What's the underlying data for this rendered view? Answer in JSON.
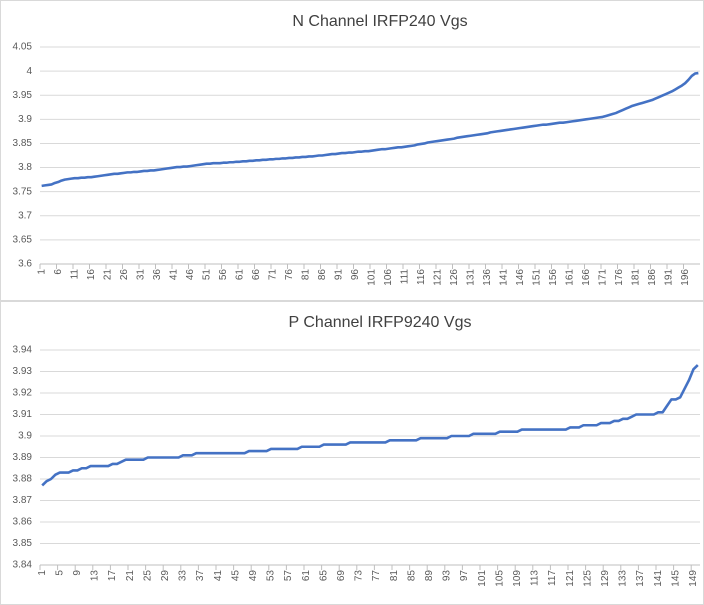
{
  "chart_data": [
    {
      "type": "line",
      "title": "N Channel IRFP240 Vgs",
      "color": "#4472c4",
      "grid": true,
      "ylim": [
        3.6,
        4.05
      ],
      "yticks": [
        3.6,
        3.65,
        3.7,
        3.75,
        3.8,
        3.85,
        3.9,
        3.95,
        4,
        4.05
      ],
      "categories": [
        1,
        null,
        null,
        null,
        null,
        6,
        null,
        null,
        null,
        null,
        11,
        null,
        null,
        null,
        null,
        16,
        null,
        null,
        null,
        null,
        21,
        null,
        null,
        null,
        null,
        26,
        null,
        null,
        null,
        null,
        31,
        null,
        null,
        null,
        null,
        36,
        null,
        null,
        null,
        null,
        41,
        null,
        null,
        null,
        null,
        46,
        null,
        null,
        null,
        null,
        51,
        null,
        null,
        null,
        null,
        56,
        null,
        null,
        null,
        null,
        61,
        null,
        null,
        null,
        null,
        66,
        null,
        null,
        null,
        null,
        71,
        null,
        null,
        null,
        null,
        76,
        null,
        null,
        null,
        null,
        81,
        null,
        null,
        null,
        null,
        86,
        null,
        null,
        null,
        null,
        91,
        null,
        null,
        null,
        null,
        96,
        null,
        null,
        null,
        null,
        101,
        null,
        null,
        null,
        null,
        106,
        null,
        null,
        null,
        null,
        111,
        null,
        null,
        null,
        null,
        116,
        null,
        null,
        null,
        null,
        121,
        null,
        null,
        null,
        null,
        126,
        null,
        null,
        null,
        null,
        131,
        null,
        null,
        null,
        null,
        136,
        null,
        null,
        null,
        null,
        141,
        null,
        null,
        null,
        null,
        146,
        null,
        null,
        null,
        null,
        151,
        null,
        null,
        null,
        null,
        156,
        null,
        null,
        null,
        null,
        161,
        null,
        null,
        null,
        null,
        166,
        null,
        null,
        null,
        null,
        171,
        null,
        null,
        null,
        null,
        176,
        null,
        null,
        null,
        null,
        181,
        null,
        null,
        null,
        null,
        186,
        null,
        null,
        null,
        null,
        191,
        null,
        null,
        null,
        null,
        196,
        null,
        null,
        null,
        null
      ],
      "values": [
        3.762,
        3.763,
        3.764,
        3.765,
        3.768,
        3.77,
        3.773,
        3.775,
        3.776,
        3.777,
        3.778,
        3.778,
        3.779,
        3.779,
        3.78,
        3.78,
        3.781,
        3.782,
        3.783,
        3.784,
        3.785,
        3.786,
        3.787,
        3.787,
        3.788,
        3.789,
        3.79,
        3.79,
        3.791,
        3.791,
        3.792,
        3.793,
        3.793,
        3.794,
        3.794,
        3.795,
        3.796,
        3.797,
        3.798,
        3.799,
        3.8,
        3.801,
        3.801,
        3.802,
        3.802,
        3.803,
        3.804,
        3.805,
        3.806,
        3.807,
        3.808,
        3.808,
        3.809,
        3.809,
        3.809,
        3.81,
        3.81,
        3.811,
        3.811,
        3.812,
        3.812,
        3.813,
        3.813,
        3.814,
        3.814,
        3.815,
        3.815,
        3.816,
        3.816,
        3.817,
        3.817,
        3.818,
        3.818,
        3.819,
        3.819,
        3.82,
        3.82,
        3.821,
        3.821,
        3.822,
        3.822,
        3.823,
        3.823,
        3.824,
        3.825,
        3.825,
        3.826,
        3.827,
        3.828,
        3.828,
        3.829,
        3.83,
        3.83,
        3.831,
        3.831,
        3.832,
        3.833,
        3.833,
        3.834,
        3.834,
        3.835,
        3.836,
        3.837,
        3.838,
        3.838,
        3.839,
        3.84,
        3.841,
        3.842,
        3.842,
        3.843,
        3.844,
        3.845,
        3.846,
        3.848,
        3.849,
        3.85,
        3.852,
        3.853,
        3.854,
        3.855,
        3.856,
        3.857,
        3.858,
        3.859,
        3.86,
        3.862,
        3.863,
        3.864,
        3.865,
        3.866,
        3.867,
        3.868,
        3.869,
        3.87,
        3.871,
        3.873,
        3.874,
        3.875,
        3.876,
        3.877,
        3.878,
        3.879,
        3.88,
        3.881,
        3.882,
        3.883,
        3.884,
        3.885,
        3.886,
        3.887,
        3.888,
        3.889,
        3.889,
        3.89,
        3.891,
        3.892,
        3.893,
        3.893,
        3.894,
        3.895,
        3.896,
        3.897,
        3.898,
        3.899,
        3.9,
        3.901,
        3.902,
        3.903,
        3.904,
        3.905,
        3.907,
        3.909,
        3.911,
        3.913,
        3.916,
        3.919,
        3.922,
        3.925,
        3.928,
        3.93,
        3.932,
        3.934,
        3.936,
        3.938,
        3.94,
        3.943,
        3.946,
        3.949,
        3.952,
        3.955,
        3.958,
        3.962,
        3.966,
        3.97,
        3.975,
        3.982,
        3.99,
        3.995,
        3.996
      ]
    },
    {
      "type": "line",
      "title": "P Channel IRFP9240 Vgs",
      "color": "#4472c4",
      "grid": true,
      "ylim": [
        3.84,
        3.94
      ],
      "yticks": [
        3.84,
        3.85,
        3.86,
        3.87,
        3.88,
        3.89,
        3.9,
        3.91,
        3.92,
        3.93,
        3.94
      ],
      "categories": [
        1,
        null,
        null,
        null,
        5,
        null,
        null,
        null,
        9,
        null,
        null,
        null,
        13,
        null,
        null,
        null,
        17,
        null,
        null,
        null,
        21,
        null,
        null,
        null,
        25,
        null,
        null,
        null,
        29,
        null,
        null,
        null,
        33,
        null,
        null,
        null,
        37,
        null,
        null,
        null,
        41,
        null,
        null,
        null,
        45,
        null,
        null,
        null,
        49,
        null,
        null,
        null,
        53,
        null,
        null,
        null,
        57,
        null,
        null,
        null,
        61,
        null,
        null,
        null,
        65,
        null,
        null,
        null,
        69,
        null,
        null,
        null,
        73,
        null,
        null,
        null,
        77,
        null,
        null,
        null,
        81,
        null,
        null,
        null,
        85,
        null,
        null,
        null,
        89,
        null,
        null,
        null,
        93,
        null,
        null,
        null,
        97,
        null,
        null,
        null,
        101,
        null,
        null,
        null,
        105,
        null,
        null,
        null,
        109,
        null,
        null,
        null,
        113,
        null,
        null,
        null,
        117,
        null,
        null,
        null,
        121,
        null,
        null,
        null,
        125,
        null,
        null,
        null,
        129,
        null,
        null,
        null,
        133,
        null,
        null,
        null,
        137,
        null,
        null,
        null,
        141,
        null,
        null,
        null,
        145,
        null,
        null,
        null,
        149,
        null
      ],
      "values": [
        3.877,
        3.879,
        3.88,
        3.882,
        3.883,
        3.883,
        3.883,
        3.884,
        3.884,
        3.885,
        3.885,
        3.886,
        3.886,
        3.886,
        3.886,
        3.886,
        3.887,
        3.887,
        3.888,
        3.889,
        3.889,
        3.889,
        3.889,
        3.889,
        3.89,
        3.89,
        3.89,
        3.89,
        3.89,
        3.89,
        3.89,
        3.89,
        3.891,
        3.891,
        3.891,
        3.892,
        3.892,
        3.892,
        3.892,
        3.892,
        3.892,
        3.892,
        3.892,
        3.892,
        3.892,
        3.892,
        3.892,
        3.893,
        3.893,
        3.893,
        3.893,
        3.893,
        3.894,
        3.894,
        3.894,
        3.894,
        3.894,
        3.894,
        3.894,
        3.895,
        3.895,
        3.895,
        3.895,
        3.895,
        3.896,
        3.896,
        3.896,
        3.896,
        3.896,
        3.896,
        3.897,
        3.897,
        3.897,
        3.897,
        3.897,
        3.897,
        3.897,
        3.897,
        3.897,
        3.898,
        3.898,
        3.898,
        3.898,
        3.898,
        3.898,
        3.898,
        3.899,
        3.899,
        3.899,
        3.899,
        3.899,
        3.899,
        3.899,
        3.9,
        3.9,
        3.9,
        3.9,
        3.9,
        3.901,
        3.901,
        3.901,
        3.901,
        3.901,
        3.901,
        3.902,
        3.902,
        3.902,
        3.902,
        3.902,
        3.903,
        3.903,
        3.903,
        3.903,
        3.903,
        3.903,
        3.903,
        3.903,
        3.903,
        3.903,
        3.903,
        3.904,
        3.904,
        3.904,
        3.905,
        3.905,
        3.905,
        3.905,
        3.906,
        3.906,
        3.906,
        3.907,
        3.907,
        3.908,
        3.908,
        3.909,
        3.91,
        3.91,
        3.91,
        3.91,
        3.91,
        3.911,
        3.911,
        3.914,
        3.917,
        3.917,
        3.918,
        3.922,
        3.926,
        3.931,
        3.933
      ]
    }
  ]
}
